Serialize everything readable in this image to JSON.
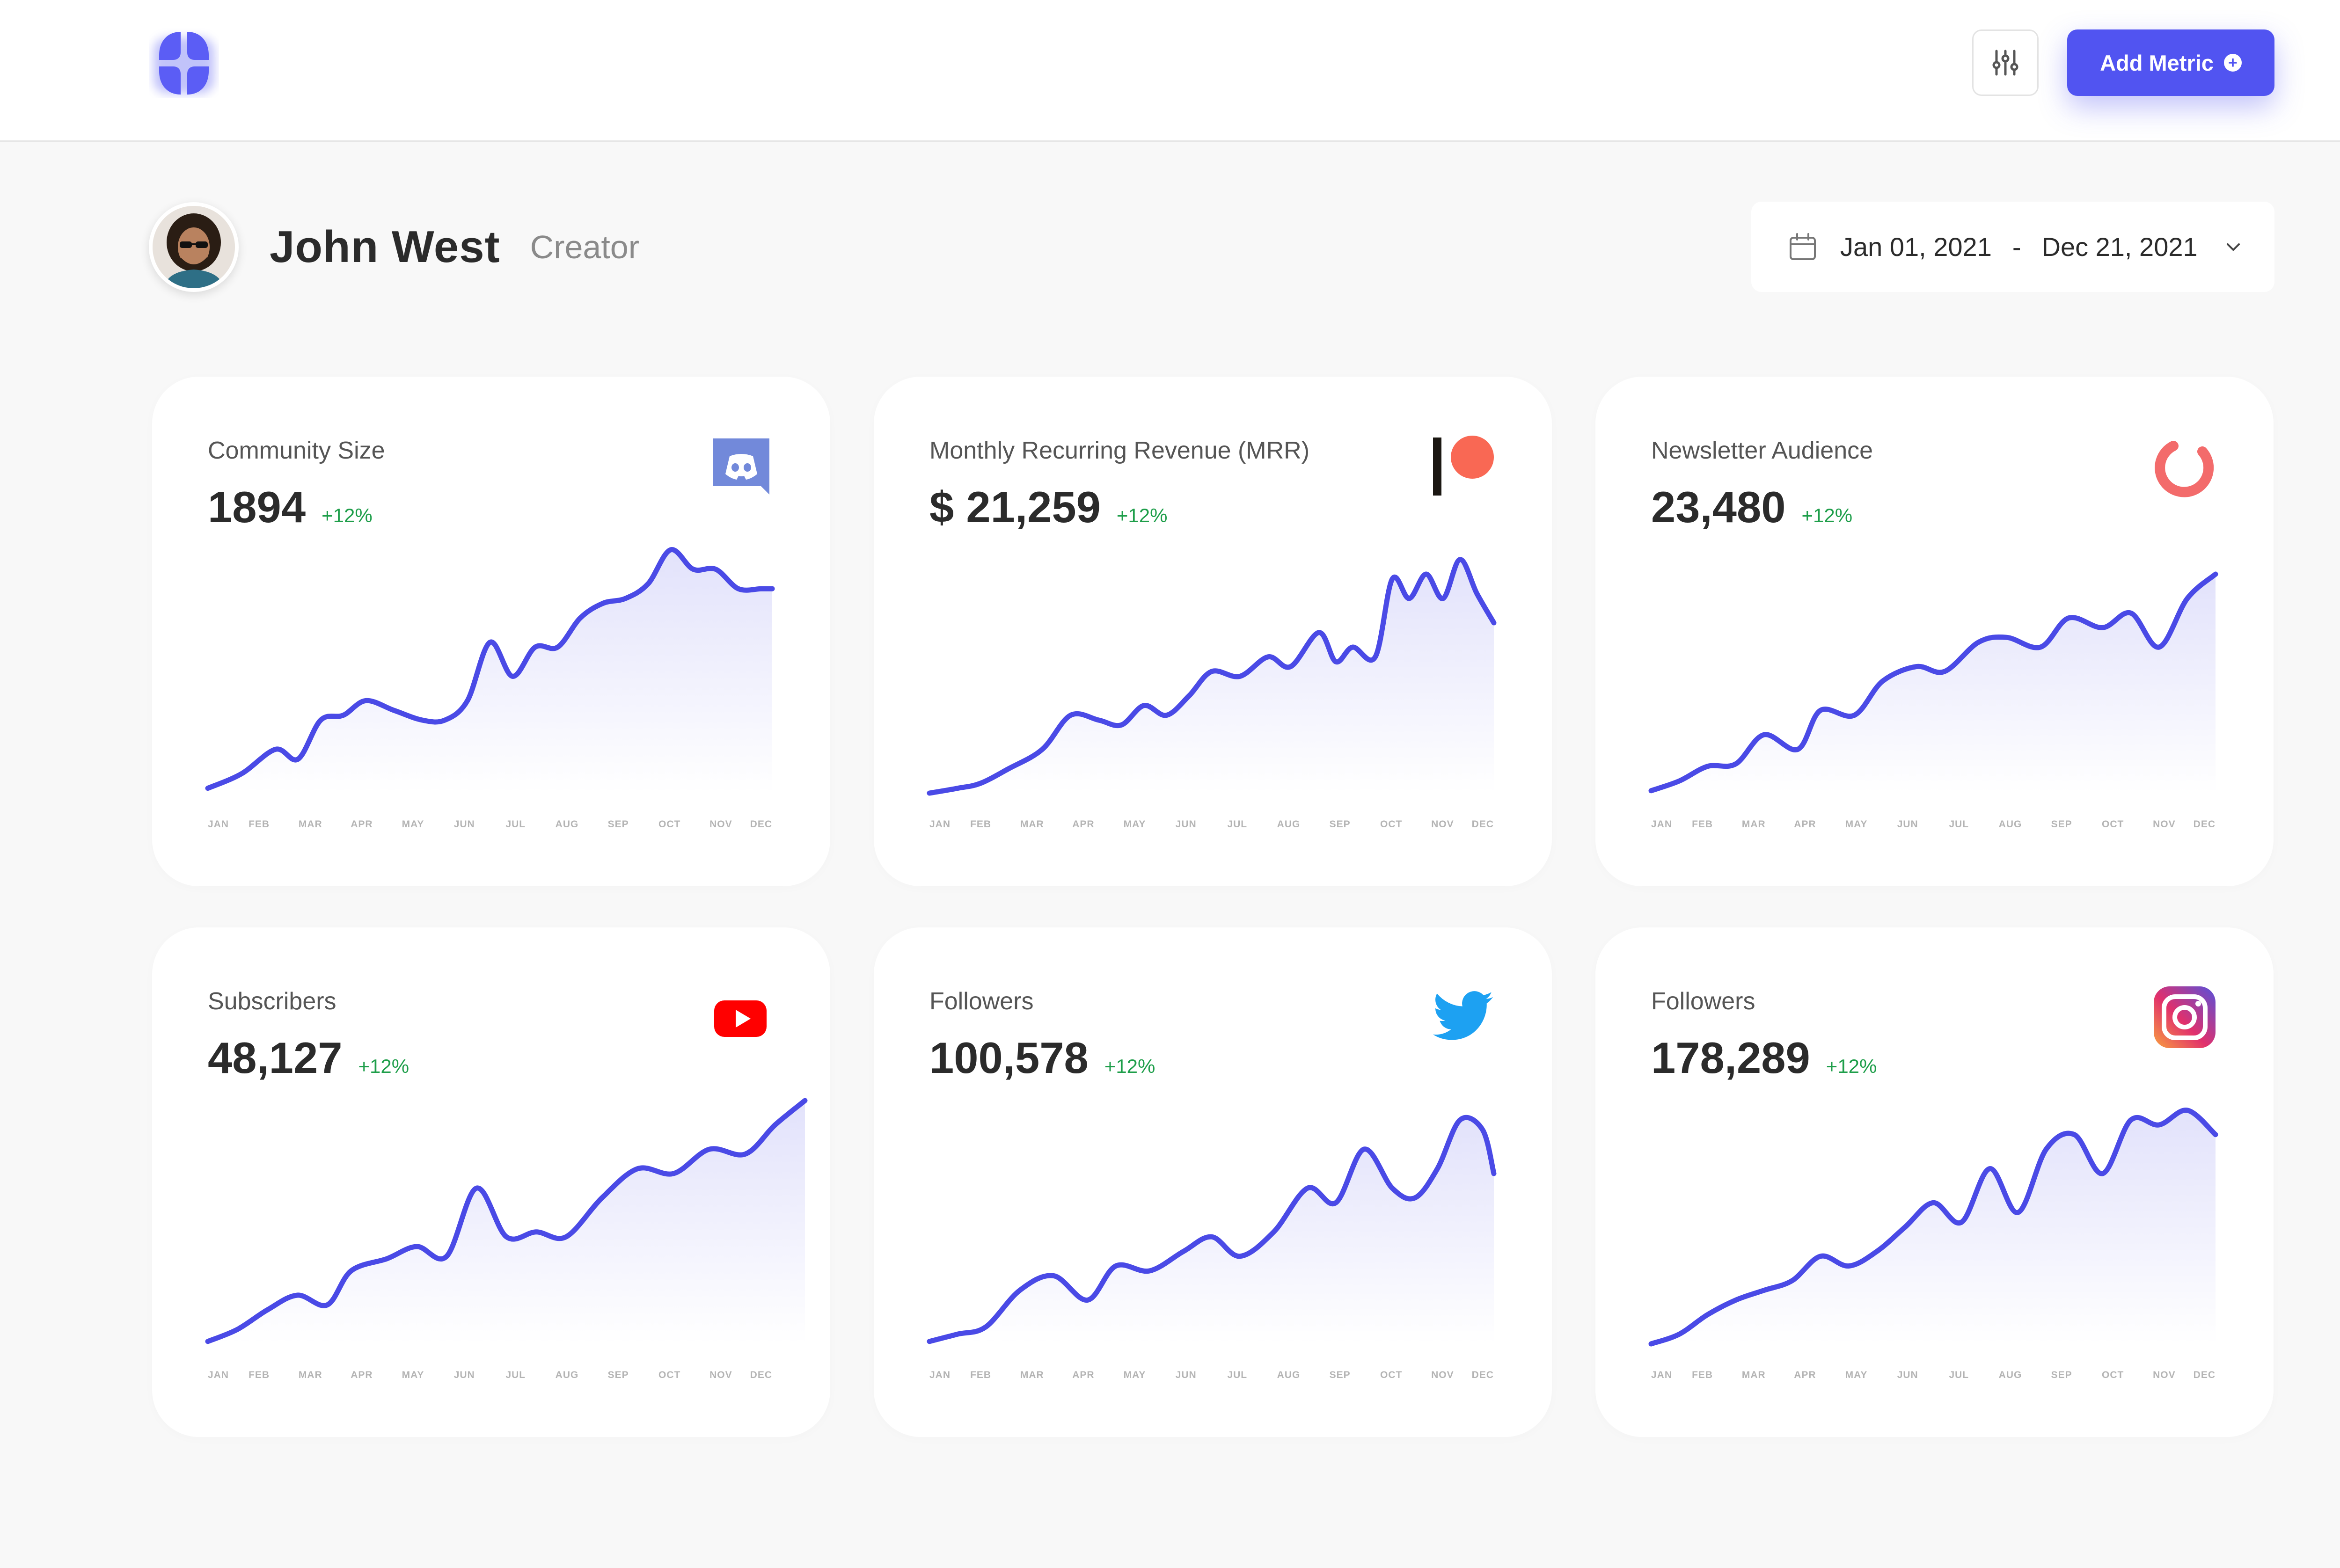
{
  "header": {
    "add_metric_label": "Add Metric"
  },
  "profile": {
    "name": "John West",
    "role": "Creator"
  },
  "date_range": {
    "start": "Jan 01, 2021",
    "separator": "-",
    "end": "Dec 21, 2021"
  },
  "months": [
    "JAN",
    "FEB",
    "MAR",
    "APR",
    "MAY",
    "JUN",
    "JUL",
    "AUG",
    "SEP",
    "OCT",
    "NOV",
    "DEC"
  ],
  "colors": {
    "accent": "#5154f1",
    "line": "#4a4ae6",
    "positive": "#1e9e4a",
    "discord": "#7289da",
    "patreon": "#f96854",
    "substack": "#f36b6b",
    "youtube": "#ff0000",
    "twitter": "#1da1f2"
  },
  "chart_data": [
    {
      "type": "line",
      "platform_icon": "discord-icon",
      "title": "Community Size",
      "value": "1894",
      "change": "+12%",
      "categories": [
        "JAN",
        "FEB",
        "MAR",
        "APR",
        "MAY",
        "JUN",
        "JUL",
        "AUG",
        "SEP",
        "OCT",
        "NOV",
        "DEC"
      ],
      "x": [
        0,
        0.06,
        0.12,
        0.16,
        0.2,
        0.24,
        0.28,
        0.33,
        0.38,
        0.42,
        0.46,
        0.5,
        0.54,
        0.58,
        0.62,
        0.66,
        0.7,
        0.74,
        0.78,
        0.82,
        0.86,
        0.9,
        0.94,
        0.98,
        1.0
      ],
      "y": [
        2,
        8,
        18,
        14,
        30,
        32,
        38,
        34,
        30,
        30,
        38,
        62,
        48,
        60,
        60,
        72,
        78,
        80,
        86,
        100,
        92,
        92,
        84,
        84,
        84
      ]
    },
    {
      "type": "line",
      "platform_icon": "patreon-icon",
      "title": "Monthly Recurring Revenue (MRR)",
      "value": "$ 21,259",
      "change": "+12%",
      "categories": [
        "JAN",
        "FEB",
        "MAR",
        "APR",
        "MAY",
        "JUN",
        "JUL",
        "AUG",
        "SEP",
        "OCT",
        "NOV",
        "DEC"
      ],
      "x": [
        0,
        0.05,
        0.09,
        0.14,
        0.2,
        0.25,
        0.3,
        0.34,
        0.38,
        0.42,
        0.46,
        0.5,
        0.55,
        0.6,
        0.64,
        0.69,
        0.72,
        0.75,
        0.79,
        0.82,
        0.85,
        0.88,
        0.91,
        0.94,
        0.97,
        1.0
      ],
      "y": [
        0,
        2,
        4,
        10,
        18,
        32,
        30,
        28,
        36,
        32,
        40,
        50,
        48,
        56,
        52,
        66,
        54,
        60,
        56,
        88,
        80,
        90,
        80,
        96,
        82,
        70
      ]
    },
    {
      "type": "line",
      "platform_icon": "substack-icon",
      "title": "Newsletter Audience",
      "value": "23,480",
      "change": "+12%",
      "categories": [
        "JAN",
        "FEB",
        "MAR",
        "APR",
        "MAY",
        "JUN",
        "JUL",
        "AUG",
        "SEP",
        "OCT",
        "NOV",
        "DEC"
      ],
      "x": [
        0,
        0.05,
        0.1,
        0.15,
        0.2,
        0.26,
        0.3,
        0.36,
        0.41,
        0.47,
        0.52,
        0.58,
        0.63,
        0.69,
        0.74,
        0.8,
        0.85,
        0.9,
        0.95,
        1.0
      ],
      "y": [
        1,
        5,
        11,
        12,
        24,
        18,
        34,
        32,
        46,
        52,
        50,
        62,
        64,
        60,
        72,
        68,
        74,
        60,
        80,
        90
      ]
    },
    {
      "type": "line",
      "platform_icon": "youtube-icon",
      "title": "Subscribers",
      "value": "48,127",
      "change": "+12%",
      "categories": [
        "JAN",
        "FEB",
        "MAR",
        "APR",
        "MAY",
        "JUN",
        "JUL",
        "AUG",
        "SEP",
        "OCT",
        "NOV",
        "DEC"
      ],
      "x": [
        0,
        0.05,
        0.1,
        0.15,
        0.2,
        0.24,
        0.3,
        0.35,
        0.4,
        0.45,
        0.5,
        0.55,
        0.6,
        0.66,
        0.72,
        0.78,
        0.84,
        0.9,
        0.95,
        1.0
      ],
      "y": [
        1,
        6,
        14,
        20,
        16,
        30,
        35,
        40,
        36,
        64,
        44,
        46,
        44,
        60,
        72,
        70,
        80,
        78,
        90,
        100
      ]
    },
    {
      "type": "line",
      "platform_icon": "twitter-icon",
      "title": "Followers",
      "value": "100,578",
      "change": "+12%",
      "categories": [
        "JAN",
        "FEB",
        "MAR",
        "APR",
        "MAY",
        "JUN",
        "JUL",
        "AUG",
        "SEP",
        "OCT",
        "NOV",
        "DEC"
      ],
      "x": [
        0,
        0.05,
        0.1,
        0.16,
        0.22,
        0.28,
        0.33,
        0.39,
        0.45,
        0.5,
        0.55,
        0.61,
        0.67,
        0.72,
        0.77,
        0.82,
        0.86,
        0.9,
        0.94,
        0.98,
        1.0
      ],
      "y": [
        1,
        4,
        7,
        22,
        28,
        18,
        32,
        30,
        38,
        44,
        36,
        46,
        64,
        58,
        80,
        64,
        60,
        72,
        92,
        88,
        70
      ]
    },
    {
      "type": "line",
      "platform_icon": "instagram-icon",
      "title": "Followers",
      "value": "178,289",
      "change": "+12%",
      "categories": [
        "JAN",
        "FEB",
        "MAR",
        "APR",
        "MAY",
        "JUN",
        "JUL",
        "AUG",
        "SEP",
        "OCT",
        "NOV",
        "DEC"
      ],
      "x": [
        0,
        0.05,
        0.1,
        0.15,
        0.2,
        0.25,
        0.3,
        0.35,
        0.4,
        0.45,
        0.5,
        0.55,
        0.6,
        0.65,
        0.7,
        0.75,
        0.8,
        0.85,
        0.9,
        0.95,
        1.0
      ],
      "y": [
        0,
        4,
        12,
        18,
        22,
        26,
        36,
        32,
        38,
        48,
        58,
        50,
        72,
        54,
        80,
        86,
        70,
        92,
        90,
        96,
        86
      ]
    }
  ]
}
